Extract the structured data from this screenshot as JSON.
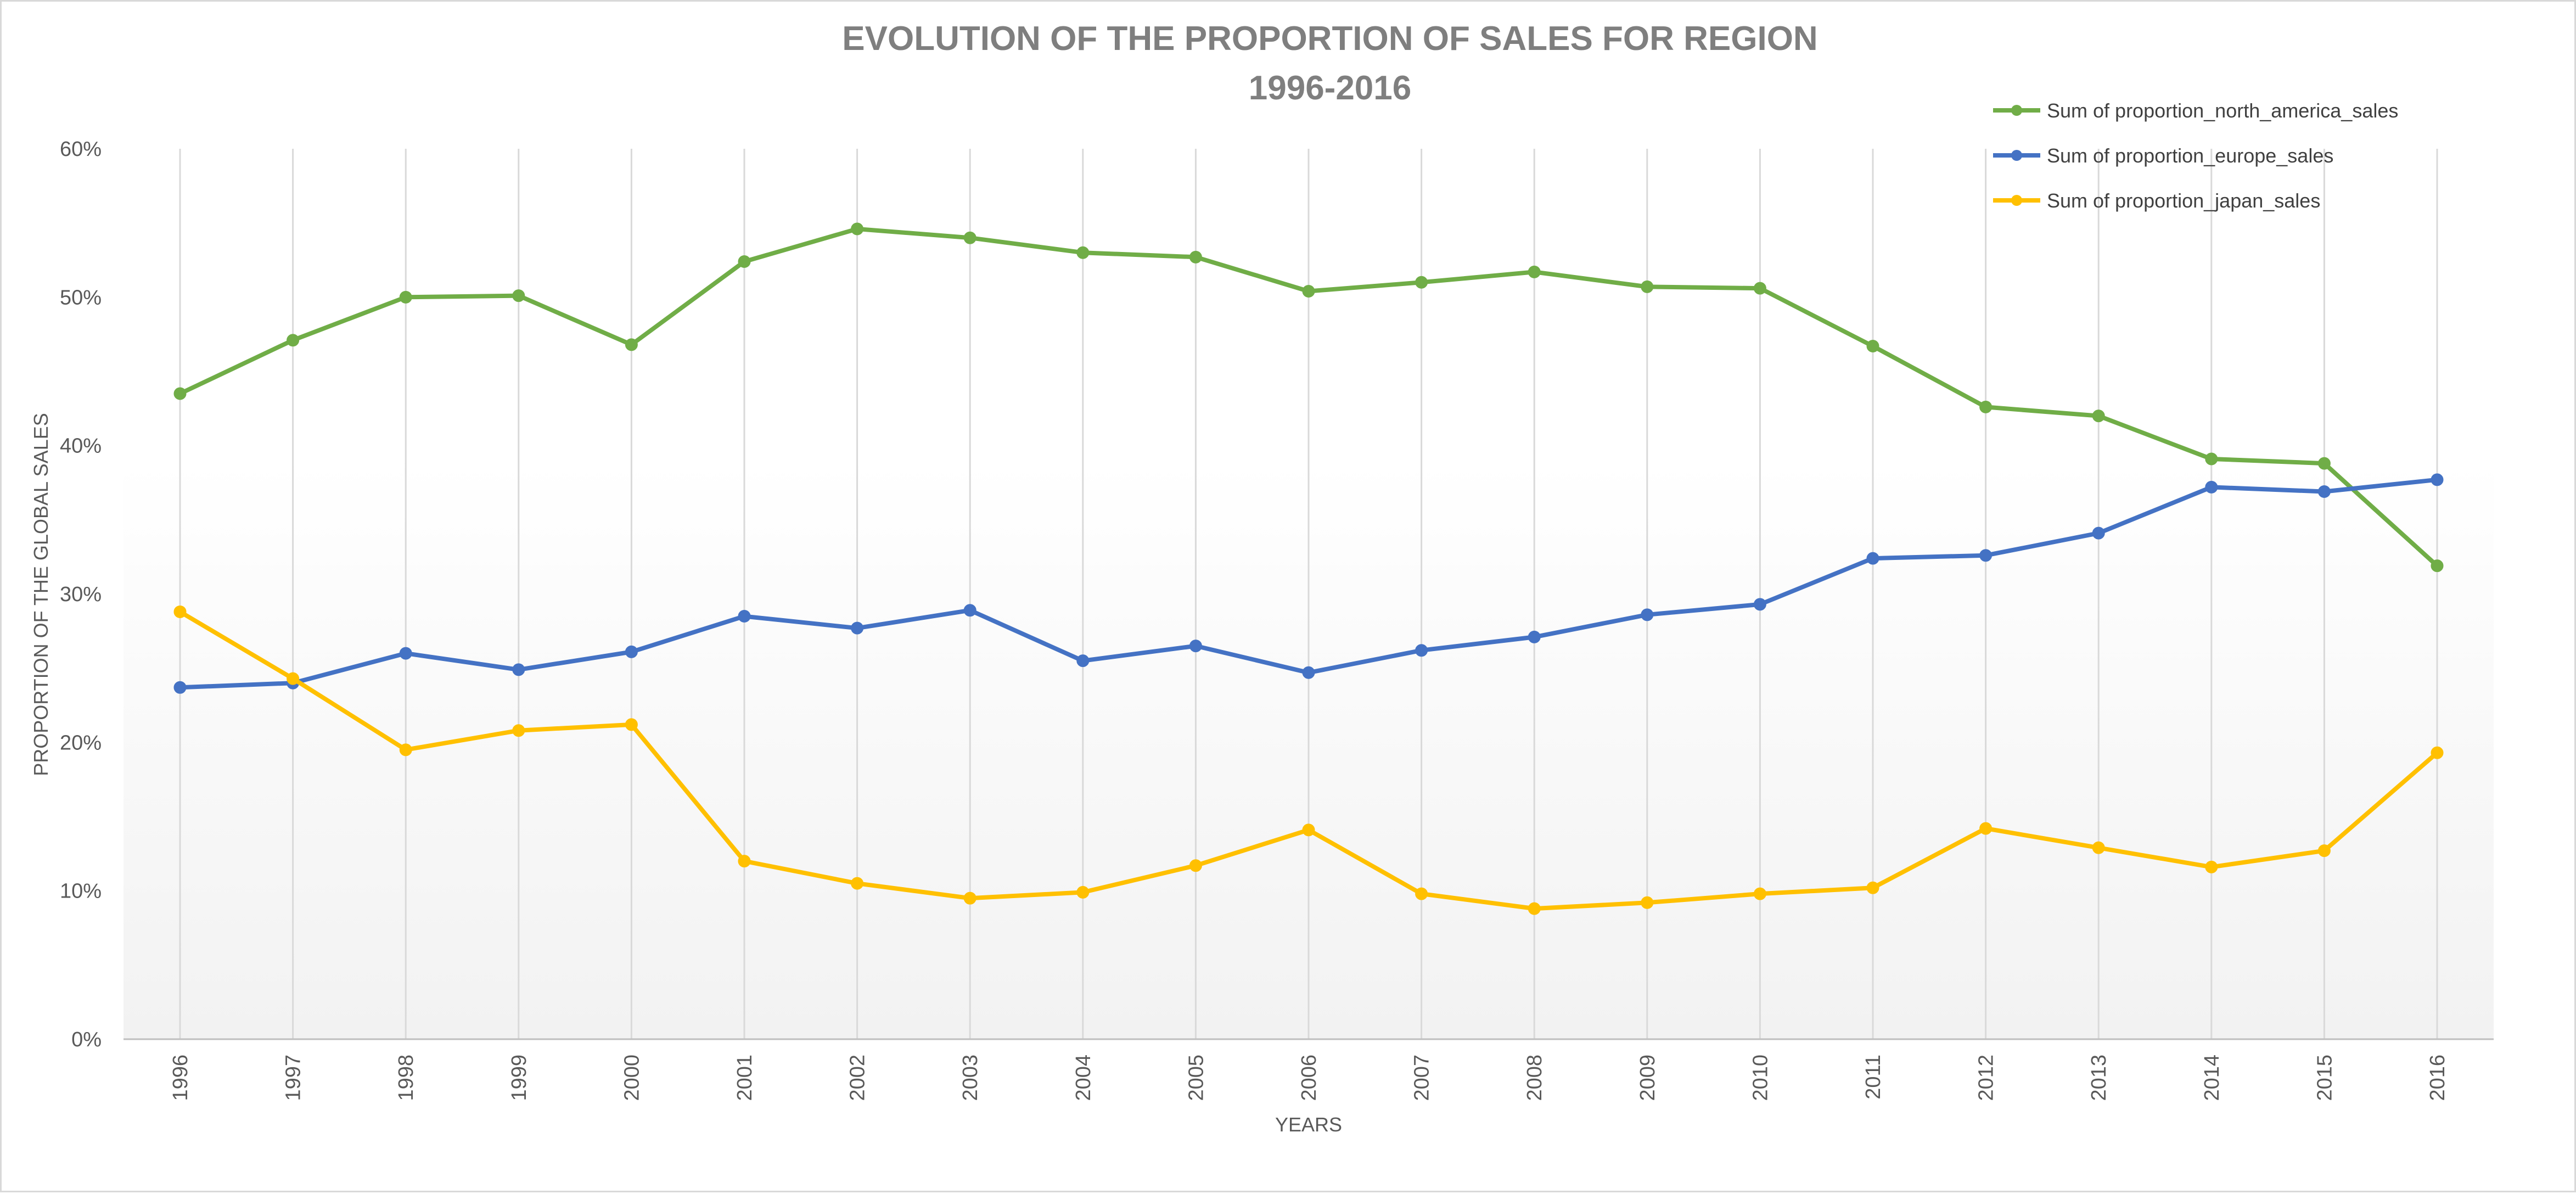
{
  "chart_data": {
    "type": "line",
    "title": "EVOLUTION OF THE PROPORTION OF SALES FOR REGION",
    "subtitle": "1996-2016",
    "xlabel": "YEARS",
    "ylabel": "PROPORTION OF THE GLOBAL SALES",
    "ylim": [
      0,
      60
    ],
    "yticks": [
      "0%",
      "10%",
      "20%",
      "30%",
      "40%",
      "50%",
      "60%"
    ],
    "grid": "vertical",
    "legend_position": "top-right",
    "categories": [
      "1996",
      "1997",
      "1998",
      "1999",
      "2000",
      "2001",
      "2002",
      "2003",
      "2004",
      "2005",
      "2006",
      "2007",
      "2008",
      "2009",
      "2010",
      "2011",
      "2012",
      "2013",
      "2014",
      "2015",
      "2016"
    ],
    "series": [
      {
        "name": "Sum of proportion_north_america_sales",
        "color": "#70ad47",
        "values": [
          43.5,
          47.1,
          50.0,
          50.1,
          46.8,
          52.4,
          54.6,
          54.0,
          53.0,
          52.7,
          50.4,
          51.0,
          51.7,
          50.7,
          50.6,
          46.7,
          42.6,
          42.0,
          39.1,
          38.8,
          31.9
        ]
      },
      {
        "name": "Sum of proportion_europe_sales",
        "color": "#4472c4",
        "values": [
          23.7,
          24.0,
          26.0,
          24.9,
          26.1,
          28.5,
          27.7,
          28.9,
          25.5,
          26.5,
          24.7,
          26.2,
          27.1,
          28.6,
          29.3,
          32.4,
          32.6,
          34.1,
          37.2,
          36.9,
          37.7
        ]
      },
      {
        "name": "Sum of proportion_japan_sales",
        "color": "#ffc000",
        "values": [
          28.8,
          24.3,
          19.5,
          20.8,
          21.2,
          12.0,
          10.5,
          9.5,
          9.9,
          11.7,
          14.1,
          9.8,
          8.8,
          9.2,
          9.8,
          10.2,
          14.2,
          12.9,
          11.6,
          12.7,
          19.3
        ]
      }
    ]
  }
}
